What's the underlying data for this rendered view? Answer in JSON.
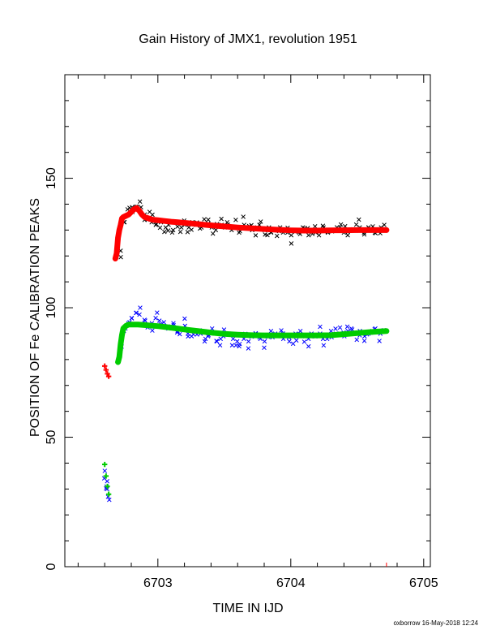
{
  "chart_data": {
    "type": "scatter",
    "title": "Gain History of JMX1, revolution 1951",
    "xlabel": "TIME IN IJD",
    "ylabel": "POSITION OF Fe CALIBRATION PEAKS",
    "xlim": [
      6702.3,
      6705.05
    ],
    "ylim": [
      0,
      190
    ],
    "xticks": [
      6703,
      6704,
      6705
    ],
    "yticks": [
      0,
      50,
      100,
      150
    ],
    "grid": false,
    "legend": "none",
    "footer": "oxborrow 16-May-2018 12:24",
    "colors": {
      "upper_raw": "#000000",
      "upper_fit": "#ff0000",
      "lower_raw": "#0000ff",
      "lower_fit": "#00cc00"
    },
    "series": [
      {
        "marker": "x",
        "color": "#000000",
        "noise": 3.2,
        "x": [
          6702.72,
          6702.75,
          6702.78,
          6702.81,
          6702.84,
          6702.87,
          6702.9,
          6702.93,
          6702.96,
          6702.99,
          6703.02,
          6703.05,
          6703.08,
          6703.11,
          6703.14,
          6703.17,
          6703.2,
          6703.23,
          6703.26,
          6703.29,
          6703.32,
          6703.35,
          6703.38,
          6703.41,
          6703.44,
          6703.47,
          6703.5,
          6703.53,
          6703.56,
          6703.59,
          6703.62,
          6703.65,
          6703.68,
          6703.71,
          6703.74,
          6703.77,
          6703.8,
          6703.83,
          6703.86,
          6703.89,
          6703.92,
          6703.95,
          6703.98,
          6704.01,
          6704.04,
          6704.07,
          6704.1,
          6704.13,
          6704.16,
          6704.19,
          6704.22,
          6704.25,
          6704.28,
          6704.31,
          6704.34,
          6704.37,
          6704.4,
          6704.43,
          6704.46,
          6704.49,
          6704.52,
          6704.55,
          6704.58,
          6704.61,
          6704.64,
          6704.67,
          6704.7
        ],
        "y": [
          122,
          133,
          138,
          137,
          139,
          141,
          136,
          134,
          133,
          132,
          133,
          131,
          132,
          130,
          133,
          131,
          132,
          131,
          133,
          132,
          131,
          132,
          134,
          131,
          130,
          132,
          131,
          133,
          130,
          131,
          129,
          132,
          131,
          130,
          131,
          132,
          130,
          131,
          129,
          130,
          131,
          130,
          129,
          128,
          130,
          129,
          131,
          128,
          130,
          129,
          130,
          131,
          129,
          130,
          130,
          131,
          129,
          128,
          130,
          130,
          131,
          129,
          131,
          130,
          129,
          131,
          132
        ]
      },
      {
        "marker": "+",
        "color": "#ff0000",
        "x": [
          6702.6,
          6702.61,
          6702.62,
          6702.63,
          6702.68,
          6702.69,
          6702.7,
          6702.71,
          6702.72,
          6702.73,
          6702.74,
          6702.76,
          6702.78,
          6702.8,
          6702.82,
          6702.84,
          6702.86,
          6702.88,
          6702.9,
          6702.93,
          6702.96,
          6703.0,
          6703.05,
          6703.1,
          6703.15,
          6703.2,
          6703.3,
          6703.4,
          6703.5,
          6703.6,
          6703.7,
          6703.8,
          6703.9,
          6704.0,
          6704.1,
          6704.2,
          6704.3,
          6704.4,
          6704.5,
          6704.6,
          6704.72
        ],
        "y": [
          77.5,
          76,
          74.5,
          73.5,
          119,
          121,
          127,
          130,
          132,
          134.5,
          135,
          135.5,
          136,
          137,
          138,
          138.5,
          137.5,
          136,
          135,
          134.5,
          134,
          133.8,
          133.5,
          133.2,
          133,
          132.8,
          132.3,
          131.8,
          131.4,
          131,
          130.7,
          130.4,
          130.1,
          129.9,
          129.8,
          129.8,
          129.9,
          129.9,
          130,
          130,
          130
        ]
      },
      {
        "marker": "x",
        "color": "#0000ff",
        "noise": 3.0,
        "x": [
          6702.6,
          6702.61,
          6702.62,
          6702.63,
          6702.72,
          6702.75,
          6702.78,
          6702.81,
          6702.84,
          6702.87,
          6702.9,
          6702.93,
          6702.96,
          6702.99,
          6703.02,
          6703.05,
          6703.08,
          6703.11,
          6703.14,
          6703.17,
          6703.2,
          6703.23,
          6703.26,
          6703.29,
          6703.32,
          6703.35,
          6703.38,
          6703.41,
          6703.44,
          6703.47,
          6703.5,
          6703.53,
          6703.56,
          6703.59,
          6703.62,
          6703.65,
          6703.68,
          6703.71,
          6703.74,
          6703.77,
          6703.8,
          6703.83,
          6703.86,
          6703.89,
          6703.92,
          6703.95,
          6703.98,
          6704.01,
          6704.04,
          6704.07,
          6704.1,
          6704.13,
          6704.16,
          6704.19,
          6704.22,
          6704.25,
          6704.28,
          6704.31,
          6704.34,
          6704.37,
          6704.4,
          6704.43,
          6704.46,
          6704.49,
          6704.52,
          6704.55,
          6704.58,
          6704.61,
          6704.64,
          6704.67,
          6704.7
        ],
        "y": [
          37,
          33,
          30,
          27,
          85,
          92,
          94,
          96,
          98,
          100,
          95,
          93,
          94,
          96,
          95,
          93,
          92,
          94,
          91,
          92,
          93,
          90,
          89,
          91,
          90,
          88,
          89,
          90,
          87,
          88,
          89,
          90,
          88,
          87,
          86,
          88,
          87,
          89,
          90,
          88,
          87,
          89,
          91,
          90,
          89,
          88,
          87,
          89,
          90,
          91,
          89,
          88,
          90,
          89,
          90,
          88,
          89,
          91,
          90,
          90,
          89,
          91,
          92,
          90,
          91,
          89,
          90,
          91,
          92,
          90,
          91
        ]
      },
      {
        "marker": "+",
        "color": "#00cc00",
        "x": [
          6702.6,
          6702.61,
          6702.62,
          6702.63,
          6702.7,
          6702.71,
          6702.72,
          6702.73,
          6702.74,
          6702.76,
          6702.78,
          6702.8,
          6702.85,
          6702.9,
          6702.95,
          6703.0,
          6703.05,
          6703.1,
          6703.2,
          6703.3,
          6703.4,
          6703.5,
          6703.6,
          6703.7,
          6703.8,
          6703.9,
          6704.0,
          6704.1,
          6704.2,
          6704.3,
          6704.4,
          6704.5,
          6704.6,
          6704.72
        ],
        "y": [
          39.5,
          35,
          31,
          28,
          79,
          81,
          86,
          89.5,
          92,
          93,
          93.5,
          93.5,
          93.5,
          93.3,
          93.1,
          92.9,
          92.6,
          92.3,
          91.6,
          91,
          90.4,
          89.9,
          89.6,
          89.4,
          89.3,
          89.3,
          89.3,
          89.3,
          89.3,
          89.4,
          89.8,
          90.2,
          90.6,
          91
        ]
      }
    ]
  }
}
